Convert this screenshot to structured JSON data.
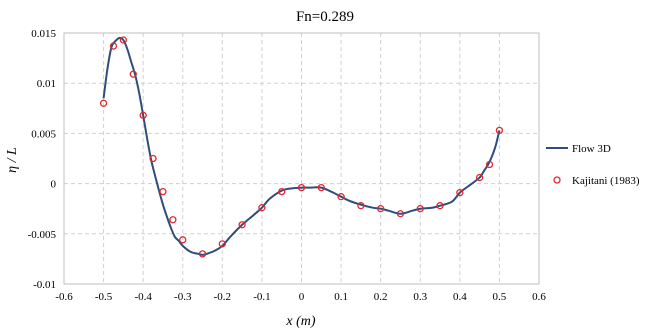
{
  "chart_data": {
    "type": "line",
    "title": "Fn=0.289",
    "xlabel": "x (m)",
    "ylabel": "η / L",
    "xlim": [
      -0.6,
      0.6
    ],
    "ylim": [
      -0.01,
      0.015
    ],
    "xticks": [
      -0.6,
      -0.5,
      -0.4,
      -0.3,
      -0.2,
      -0.1,
      0,
      0.1,
      0.2,
      0.3,
      0.4,
      0.5,
      0.6
    ],
    "xtick_labels": [
      "-0.6",
      "-0.5",
      "-0.4",
      "-0.3",
      "-0.2",
      "-0.1",
      "0",
      "0.1",
      "0.2",
      "0.3",
      "0.4",
      "0.5",
      "0.6"
    ],
    "yticks": [
      -0.01,
      -0.005,
      0,
      0.005,
      0.01,
      0.015
    ],
    "ytick_labels": [
      "-0.01",
      "-0.005",
      "0",
      "0.005",
      "0.01",
      "0.015"
    ],
    "grid": "dashed",
    "legend_position": "right",
    "series": [
      {
        "name": "Flow 3D",
        "kind": "line",
        "color": "#2e4d7a",
        "x": [
          -0.5,
          -0.49,
          -0.48,
          -0.47,
          -0.46,
          -0.45,
          -0.44,
          -0.43,
          -0.42,
          -0.41,
          -0.4,
          -0.39,
          -0.38,
          -0.37,
          -0.36,
          -0.35,
          -0.34,
          -0.33,
          -0.32,
          -0.31,
          -0.3,
          -0.28,
          -0.26,
          -0.25,
          -0.24,
          -0.22,
          -0.2,
          -0.18,
          -0.15,
          -0.12,
          -0.1,
          -0.08,
          -0.05,
          -0.03,
          0,
          0.02,
          0.05,
          0.08,
          0.1,
          0.12,
          0.15,
          0.18,
          0.2,
          0.22,
          0.25,
          0.28,
          0.3,
          0.33,
          0.35,
          0.38,
          0.4,
          0.42,
          0.45,
          0.46,
          0.47,
          0.48,
          0.49,
          0.5
        ],
        "y": [
          0.0085,
          0.0115,
          0.0136,
          0.0142,
          0.0145,
          0.0143,
          0.0134,
          0.0121,
          0.0108,
          0.009,
          0.0068,
          0.0045,
          0.0024,
          0.0008,
          -0.0007,
          -0.0021,
          -0.0033,
          -0.0044,
          -0.0053,
          -0.0057,
          -0.0062,
          -0.0068,
          -0.007,
          -0.0071,
          -0.007,
          -0.0067,
          -0.0062,
          -0.0053,
          -0.0041,
          -0.0031,
          -0.0024,
          -0.0015,
          -0.0007,
          -0.0005,
          -0.0004,
          -0.0004,
          -0.0004,
          -0.0009,
          -0.0013,
          -0.0017,
          -0.0021,
          -0.0024,
          -0.0025,
          -0.0027,
          -0.003,
          -0.0027,
          -0.0025,
          -0.0024,
          -0.0022,
          -0.0018,
          -0.0009,
          -0.0003,
          0.0006,
          0.0012,
          0.0018,
          0.0026,
          0.0037,
          0.0053
        ]
      },
      {
        "name": "Kajitani (1983)",
        "kind": "scatter",
        "color": "#e0282e",
        "x": [
          -0.5,
          -0.475,
          -0.45,
          -0.425,
          -0.4,
          -0.375,
          -0.35,
          -0.325,
          -0.3,
          -0.25,
          -0.2,
          -0.15,
          -0.1,
          -0.05,
          0,
          0.05,
          0.1,
          0.15,
          0.2,
          0.25,
          0.3,
          0.35,
          0.4,
          0.45,
          0.475,
          0.5
        ],
        "y": [
          0.008,
          0.0137,
          0.0143,
          0.0109,
          0.0068,
          0.0025,
          -0.0008,
          -0.0036,
          -0.0056,
          -0.007,
          -0.006,
          -0.0041,
          -0.0024,
          -0.0008,
          -0.0004,
          -0.0004,
          -0.0013,
          -0.0022,
          -0.0025,
          -0.003,
          -0.0025,
          -0.0022,
          -0.0009,
          0.0006,
          0.0019,
          0.0053
        ]
      }
    ]
  }
}
